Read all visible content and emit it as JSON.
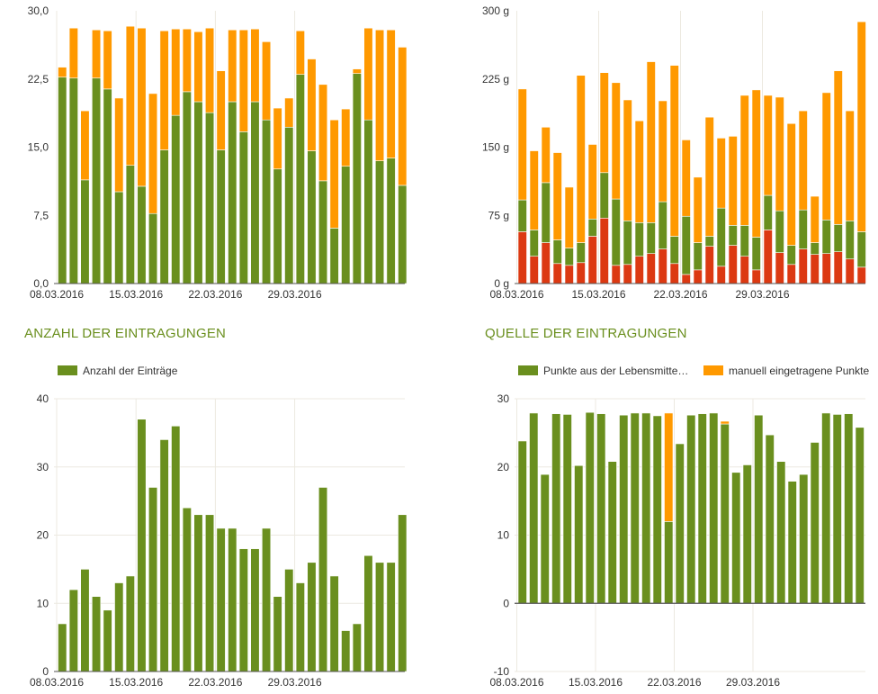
{
  "colors": {
    "green": "#6a8f1e",
    "orange": "#ff9900",
    "red": "#dc3912",
    "grid": "#ece9e0",
    "axis": "#555555",
    "title": "#6a8f1e"
  },
  "section_titles": {
    "left": "ANZAHL DER EINTRAGUNGEN",
    "right": "QUELLE DER EINTRAGUNGEN"
  },
  "chart_data": [
    {
      "id": "points-chart",
      "type": "bar",
      "stacked": true,
      "ylim": [
        0,
        30
      ],
      "y_ticks": [
        "0,0",
        "7,5",
        "15,0",
        "22,5",
        "30,0"
      ],
      "x_ticks": [
        {
          "label": "08.03.2016",
          "index": 0
        },
        {
          "label": "15.03.2016",
          "index": 7
        },
        {
          "label": "22.03.2016",
          "index": 14
        },
        {
          "label": "29.03.2016",
          "index": 21
        }
      ],
      "grid": "vertical",
      "series": [
        {
          "color": "green",
          "values": [
            22.7,
            22.6,
            11.4,
            22.6,
            21.4,
            10.1,
            13,
            10.7,
            7.7,
            14.7,
            18.5,
            21.1,
            20,
            18.8,
            14.7,
            20,
            16.7,
            20,
            18,
            12.6,
            17.2,
            23,
            14.6,
            11.3,
            6.1,
            12.9,
            23.1,
            18,
            13.5,
            13.8,
            10.8
          ]
        },
        {
          "color": "orange",
          "values": [
            1.1,
            5.5,
            7.6,
            5.3,
            6.4,
            10.3,
            15.3,
            17.4,
            13.2,
            13.1,
            9.5,
            6.9,
            7.7,
            9.3,
            8.7,
            7.9,
            11.2,
            8,
            8.6,
            6.7,
            3.2,
            4.8,
            10.1,
            10.6,
            11.9,
            6.3,
            0.5,
            10.1,
            14.4,
            14.1,
            15.2
          ]
        }
      ]
    },
    {
      "id": "grams-chart",
      "type": "bar",
      "stacked": true,
      "ylim": [
        0,
        300
      ],
      "y_ticks": [
        "0 g",
        "75 g",
        "150 g",
        "225 g",
        "300 g"
      ],
      "x_ticks": [
        {
          "label": "08.03.2016",
          "index": 0
        },
        {
          "label": "15.03.2016",
          "index": 7
        },
        {
          "label": "22.03.2016",
          "index": 14
        },
        {
          "label": "29.03.2016",
          "index": 21
        }
      ],
      "grid": "vertical",
      "series": [
        {
          "color": "red",
          "values": [
            57,
            30,
            45,
            22,
            20,
            23,
            52,
            72,
            20,
            21,
            30,
            33,
            38,
            22,
            10,
            15,
            41,
            19,
            42,
            30,
            15,
            59,
            34,
            21,
            38,
            32,
            33,
            35,
            27,
            18
          ]
        },
        {
          "color": "green",
          "values": [
            35,
            29,
            66,
            26,
            19,
            22,
            19,
            50,
            73,
            48,
            37,
            34,
            52,
            30,
            64,
            30,
            11,
            64,
            22,
            34,
            36,
            38,
            46,
            21,
            43,
            13,
            37,
            30,
            42,
            39
          ]
        },
        {
          "color": "orange",
          "values": [
            122,
            87,
            61,
            96,
            67,
            184,
            82,
            110,
            128,
            133,
            112,
            177,
            111,
            188,
            84,
            72,
            131,
            77,
            98,
            143,
            162,
            110,
            125,
            134,
            109,
            51,
            140,
            169,
            121,
            231
          ]
        }
      ]
    },
    {
      "id": "entries-chart",
      "type": "bar",
      "ylim": [
        0,
        40
      ],
      "y_ticks": [
        "0",
        "10",
        "20",
        "30",
        "40"
      ],
      "x_ticks": [
        {
          "label": "08.03.2016",
          "index": 0
        },
        {
          "label": "15.03.2016",
          "index": 7
        },
        {
          "label": "22.03.2016",
          "index": 14
        },
        {
          "label": "29.03.2016",
          "index": 21
        }
      ],
      "grid": "both",
      "legend": [
        {
          "label": "Anzahl der Einträge",
          "color": "green"
        }
      ],
      "series": [
        {
          "name": "Anzahl der Einträge",
          "color": "green",
          "values": [
            7,
            12,
            15,
            11,
            9,
            13,
            14,
            37,
            27,
            34,
            36,
            24,
            23,
            23,
            21,
            21,
            18,
            18,
            21,
            11,
            15,
            13,
            16,
            27,
            14,
            6,
            7,
            17,
            16,
            16,
            23
          ]
        }
      ]
    },
    {
      "id": "source-chart",
      "type": "bar",
      "stacked": true,
      "ylim": [
        -10,
        30
      ],
      "y_ticks": [
        "-10",
        "0",
        "10",
        "20",
        "30"
      ],
      "x_ticks": [
        {
          "label": "08.03.2016",
          "index": 0
        },
        {
          "label": "15.03.2016",
          "index": 7
        },
        {
          "label": "22.03.2016",
          "index": 14
        },
        {
          "label": "29.03.2016",
          "index": 21
        }
      ],
      "grid": "both",
      "legend": [
        {
          "label": "Punkte aus der Lebensmitte…",
          "color": "green"
        },
        {
          "label": "manuell eingetragene Punkte",
          "color": "orange"
        }
      ],
      "series": [
        {
          "name": "Punkte aus der Lebensmitte…",
          "color": "green",
          "values": [
            23.8,
            27.9,
            18.9,
            27.8,
            27.7,
            20.2,
            28,
            27.8,
            20.8,
            27.6,
            27.9,
            27.9,
            27.5,
            12,
            23.4,
            27.6,
            27.8,
            27.9,
            26.3,
            19.2,
            20.3,
            27.6,
            24.7,
            20.8,
            17.9,
            18.9,
            23.6,
            27.9,
            27.7,
            27.8,
            25.8
          ]
        },
        {
          "name": "manuell eingetragene Punkte",
          "color": "orange",
          "values": [
            0,
            0,
            0,
            0,
            0,
            0,
            0,
            0,
            0,
            0,
            0,
            0,
            0,
            15.9,
            0,
            0,
            0,
            0,
            0.4,
            0,
            0,
            0,
            0,
            0,
            0,
            0,
            0,
            0,
            0,
            0,
            0
          ]
        }
      ]
    }
  ]
}
